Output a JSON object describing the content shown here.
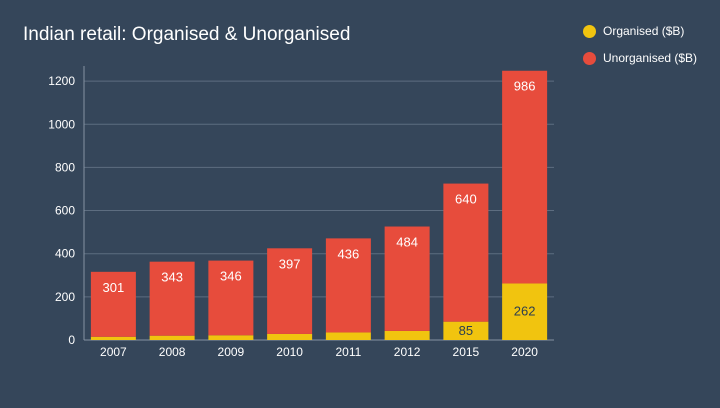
{
  "chart_data": {
    "type": "bar",
    "stacked": true,
    "title": "Indian retail: Organised & Unorganised",
    "categories": [
      "2007",
      "2008",
      "2009",
      "2010",
      "2011",
      "2012",
      "2015",
      "2020"
    ],
    "series": [
      {
        "name": "Organised ($B)",
        "color": "#f1c40f",
        "values": [
          15,
          20,
          22,
          28,
          35,
          42,
          85,
          262
        ],
        "labels": [
          "",
          "",
          "",
          "",
          "",
          "",
          "85",
          "262"
        ]
      },
      {
        "name": "Unorganised ($B)",
        "color": "#e74c3c",
        "values": [
          301,
          343,
          346,
          397,
          436,
          484,
          640,
          986
        ],
        "labels": [
          "301",
          "343",
          "346",
          "397",
          "436",
          "484",
          "640",
          "986"
        ]
      }
    ],
    "ylim": [
      0,
      1200
    ],
    "yticks": [
      0,
      200,
      400,
      600,
      800,
      1000,
      1200
    ],
    "grid": true,
    "legend_position": "top-right",
    "xlabel": "",
    "ylabel": ""
  }
}
